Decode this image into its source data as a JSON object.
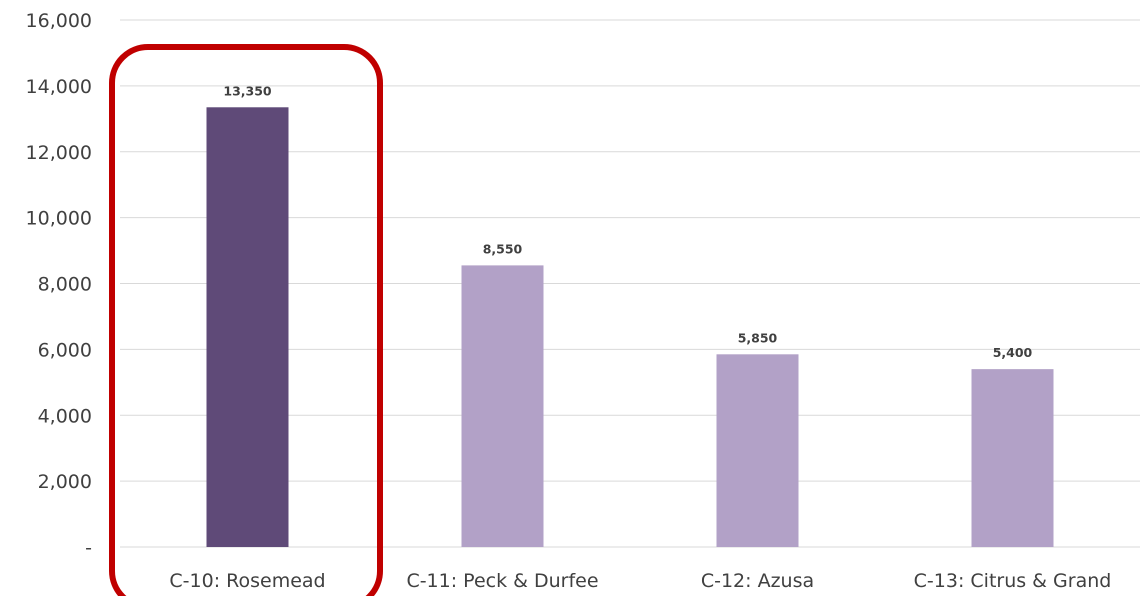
{
  "chart_data": {
    "type": "bar",
    "categories": [
      "C-10: Rosemead",
      "C-11: Peck & Durfee",
      "C-12: Azusa",
      "C-13: Citrus & Grand"
    ],
    "values": [
      13350,
      8550,
      5850,
      5400
    ],
    "data_labels": [
      "13,350",
      "8,550",
      "5,850",
      "5,400"
    ],
    "y_ticks": [
      0,
      2000,
      4000,
      6000,
      8000,
      10000,
      12000,
      14000,
      16000
    ],
    "y_tick_labels": [
      "-",
      "2,000",
      "4,000",
      "6,000",
      "8,000",
      "10,000",
      "12,000",
      "14,000",
      "16,000"
    ],
    "ylim": [
      0,
      16000
    ],
    "title": "",
    "xlabel": "",
    "ylabel": "",
    "grid": true,
    "legend": "none",
    "highlighted_category": "C-10: Rosemead",
    "colors": {
      "highlight_bar": "#5f4a78",
      "bar": "#b2a1c7",
      "gridline": "#d9d9d9",
      "highlight_box": "#c00000",
      "text": "#404040"
    }
  }
}
